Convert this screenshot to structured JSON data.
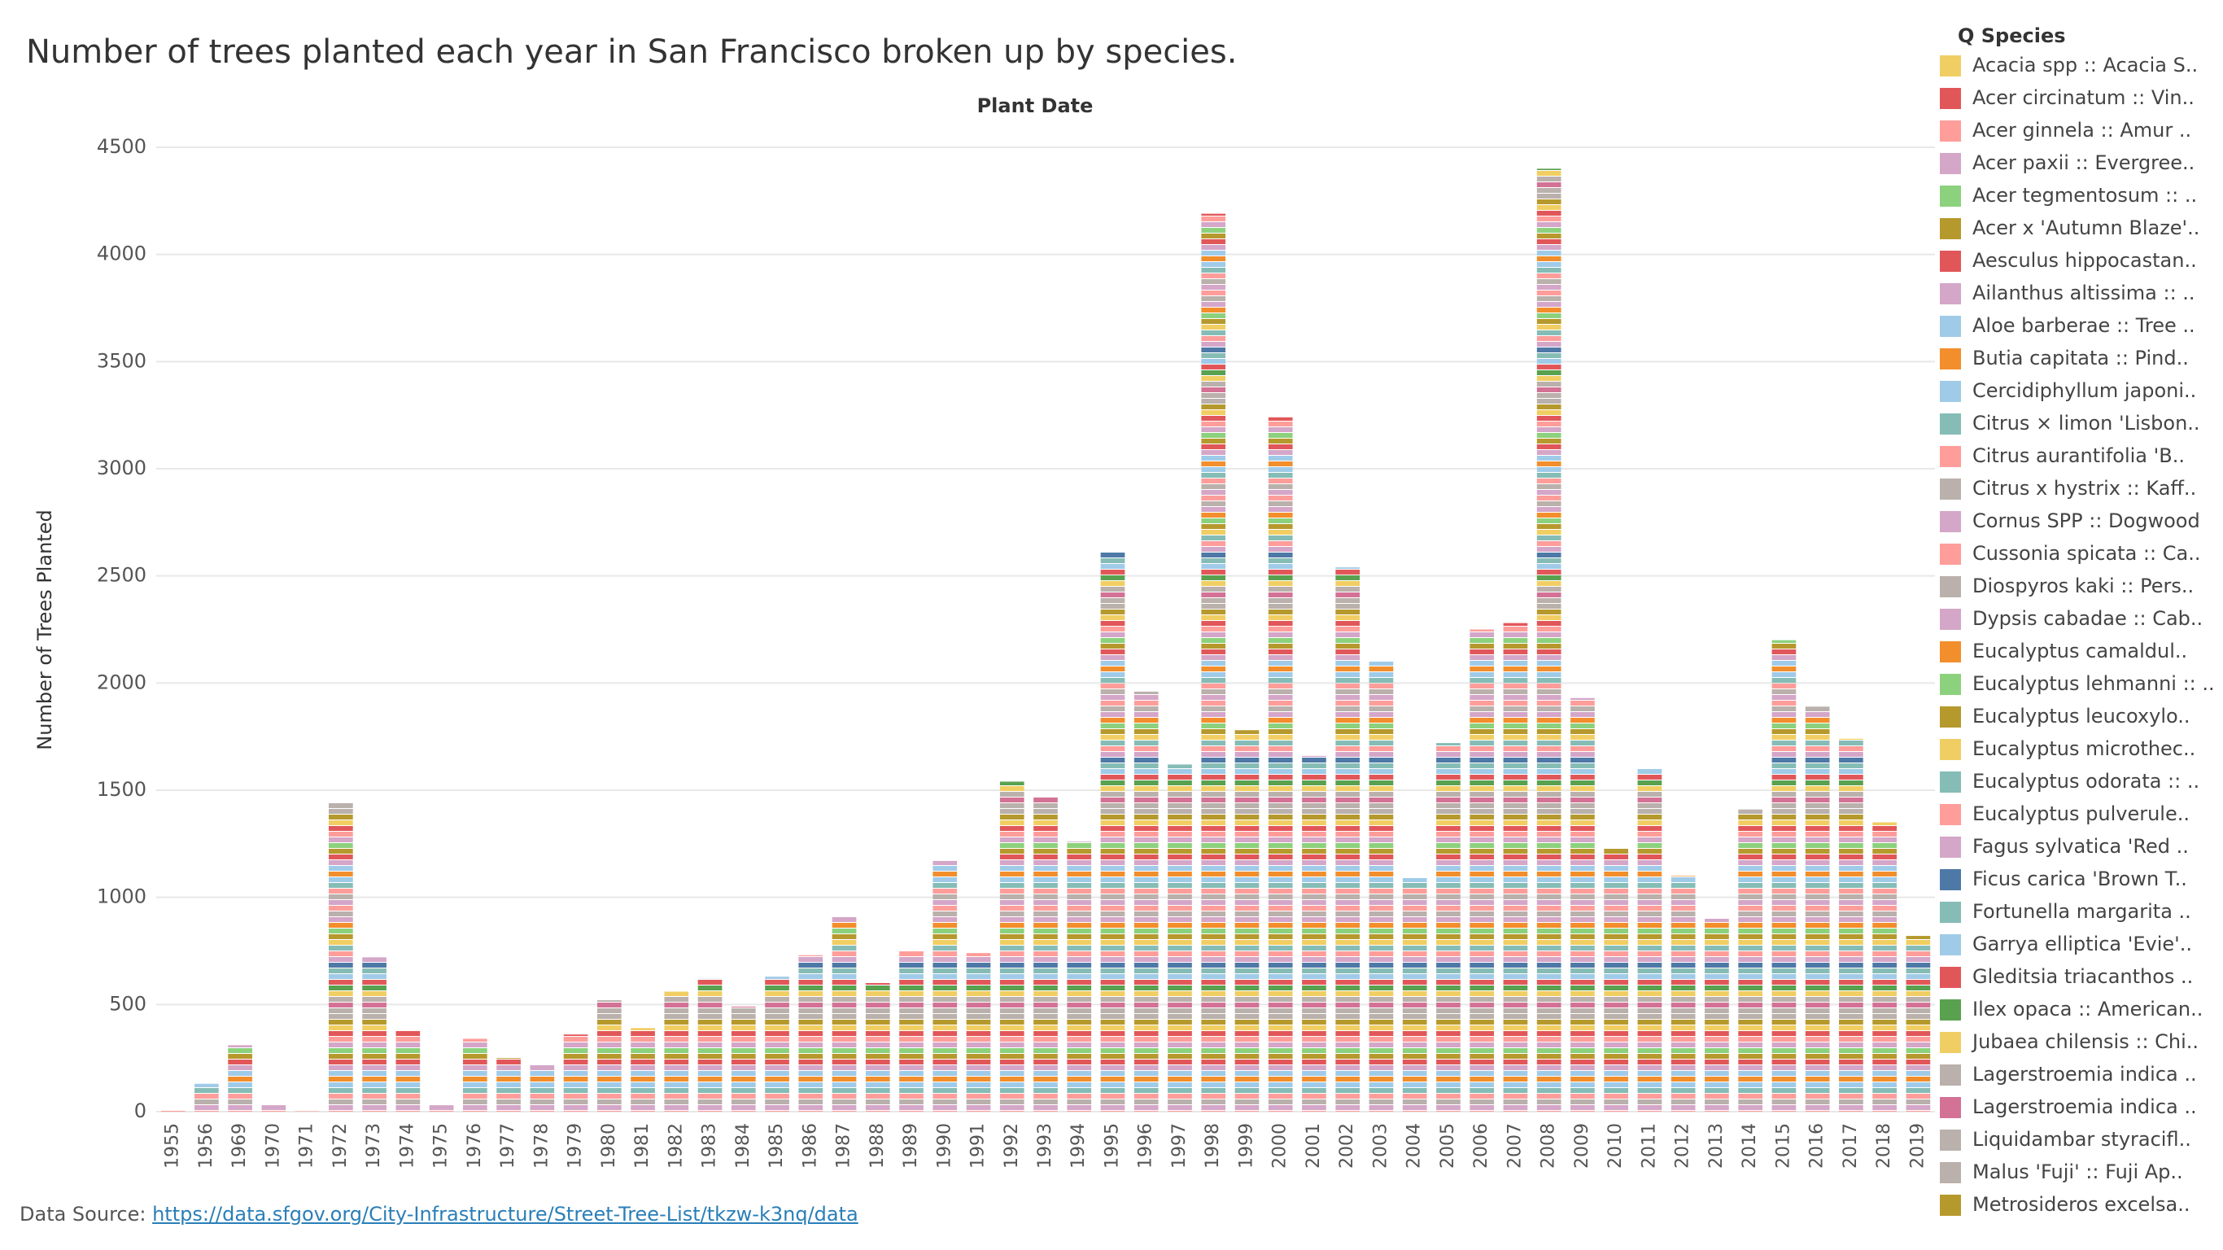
{
  "chart_data": {
    "type": "bar",
    "title": "Number of trees planted each year in San Francisco broken up by species.",
    "x_label": "Plant Date",
    "y_label": "Number of Trees Planted",
    "legend_title": "Q Species",
    "categories": [
      "1955",
      "1956",
      "1969",
      "1970",
      "1971",
      "1972",
      "1973",
      "1974",
      "1975",
      "1976",
      "1977",
      "1978",
      "1979",
      "1980",
      "1981",
      "1982",
      "1983",
      "1984",
      "1985",
      "1986",
      "1987",
      "1988",
      "1989",
      "1990",
      "1991",
      "1992",
      "1993",
      "1994",
      "1995",
      "1996",
      "1997",
      "1998",
      "1999",
      "2000",
      "2001",
      "2002",
      "2003",
      "2004",
      "2005",
      "2006",
      "2007",
      "2008",
      "2009",
      "2010",
      "2011",
      "2012",
      "2013",
      "2014",
      "2015",
      "2016",
      "2017",
      "2018",
      "2019"
    ],
    "values": [
      5,
      130,
      310,
      30,
      2,
      1440,
      720,
      380,
      30,
      340,
      250,
      220,
      360,
      520,
      390,
      560,
      620,
      490,
      630,
      730,
      910,
      600,
      750,
      1170,
      740,
      1540,
      1470,
      1260,
      2610,
      1960,
      1620,
      4190,
      1780,
      3240,
      1660,
      2540,
      2100,
      1090,
      1720,
      2250,
      2280,
      4400,
      1930,
      1230,
      1600,
      1100,
      900,
      1410,
      2200,
      1890,
      1740,
      1350,
      820
    ],
    "legend": [
      {
        "name": "Acacia spp :: Acacia S..",
        "color": "#f1ce63"
      },
      {
        "name": "Acer circinatum :: Vin..",
        "color": "#e15759"
      },
      {
        "name": "Acer ginnela :: Amur ..",
        "color": "#ff9d9a"
      },
      {
        "name": "Acer paxii :: Evergree..",
        "color": "#d4a6c8"
      },
      {
        "name": "Acer tegmentosum :: ..",
        "color": "#8cd17d"
      },
      {
        "name": "Acer x 'Autumn Blaze'..",
        "color": "#b6992d"
      },
      {
        "name": "Aesculus hippocastan..",
        "color": "#e15759"
      },
      {
        "name": "Ailanthus altissima :: ..",
        "color": "#d4a6c8"
      },
      {
        "name": "Aloe barberae :: Tree ..",
        "color": "#a0cbe8"
      },
      {
        "name": "Butia capitata :: Pind..",
        "color": "#f28e2b"
      },
      {
        "name": "Cercidiphyllum japoni..",
        "color": "#a0cbe8"
      },
      {
        "name": "Citrus × limon 'Lisbon..",
        "color": "#86bcb6"
      },
      {
        "name": "Citrus aurantifolia 'B..",
        "color": "#ff9d9a"
      },
      {
        "name": "Citrus x hystrix :: Kaff..",
        "color": "#bab0ac"
      },
      {
        "name": "Cornus SPP :: Dogwood",
        "color": "#d4a6c8"
      },
      {
        "name": "Cussonia spicata :: Ca..",
        "color": "#ff9d9a"
      },
      {
        "name": "Diospyros kaki :: Pers..",
        "color": "#bab0ac"
      },
      {
        "name": "Dypsis cabadae :: Cab..",
        "color": "#d4a6c8"
      },
      {
        "name": "Eucalyptus camaldul..",
        "color": "#f28e2b"
      },
      {
        "name": "Eucalyptus lehmanni :: ..",
        "color": "#8cd17d"
      },
      {
        "name": "Eucalyptus leucoxylo..",
        "color": "#b6992d"
      },
      {
        "name": "Eucalyptus microthec..",
        "color": "#f1ce63"
      },
      {
        "name": "Eucalyptus odorata :: ..",
        "color": "#86bcb6"
      },
      {
        "name": "Eucalyptus pulverule..",
        "color": "#ff9d9a"
      },
      {
        "name": "Fagus sylvatica 'Red ..",
        "color": "#d4a6c8"
      },
      {
        "name": "Ficus carica 'Brown T..",
        "color": "#4e79a7"
      },
      {
        "name": "Fortunella margarita ..",
        "color": "#86bcb6"
      },
      {
        "name": "Garrya elliptica 'Evie'..",
        "color": "#a0cbe8"
      },
      {
        "name": "Gleditsia triacanthos ..",
        "color": "#e15759"
      },
      {
        "name": "Ilex opaca :: American..",
        "color": "#59a14f"
      },
      {
        "name": "Jubaea chilensis :: Chi..",
        "color": "#f1ce63"
      },
      {
        "name": "Lagerstroemia indica ..",
        "color": "#bab0ac"
      },
      {
        "name": "Lagerstroemia indica ..",
        "color": "#d37295"
      },
      {
        "name": "Liquidambar styracifl..",
        "color": "#bab0ac"
      },
      {
        "name": "Malus 'Fuji' :: Fuji Ap..",
        "color": "#bab0ac"
      },
      {
        "name": "Metrosideros excelsa..",
        "color": "#b6992d"
      }
    ],
    "ylim": [
      0,
      4500
    ],
    "yticks": [
      0,
      500,
      1000,
      1500,
      2000,
      2500,
      3000,
      3500,
      4000,
      4500
    ],
    "grid": true,
    "source_label": "Data Source:",
    "source_url": "https://data.sfgov.org/City-Infrastructure/Street-Tree-List/tkzw-k3nq/data"
  }
}
